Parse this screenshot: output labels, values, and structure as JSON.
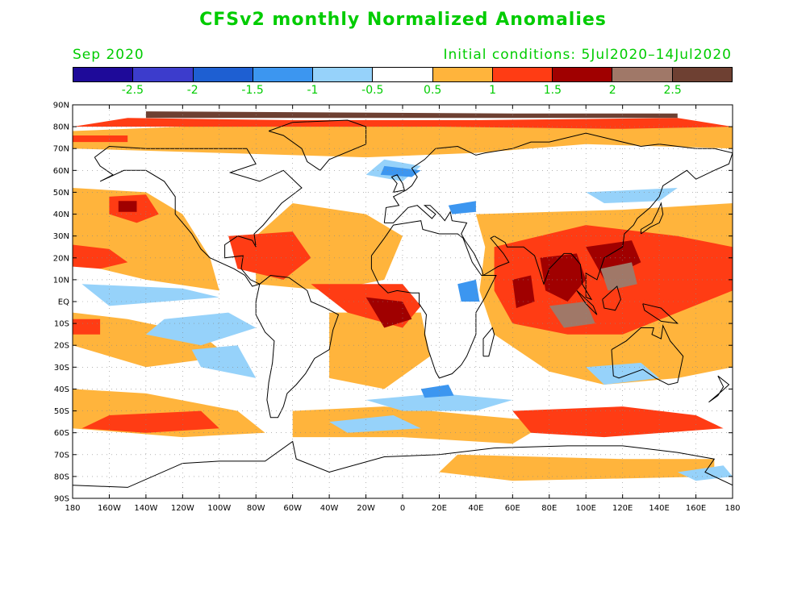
{
  "title": "CFSv2 monthly Normalized Anomalies",
  "valid_month": "Sep 2020",
  "initial_conditions": "Initial conditions: 5Jul2020–14Jul2020",
  "colorbar": {
    "colors": [
      "#1e0a99",
      "#3c3ccc",
      "#1e5fd2",
      "#3c96f0",
      "#96d2fa",
      "#ffffff",
      "#ffb43c",
      "#ff3c14",
      "#a00000",
      "#a07868",
      "#6e4032"
    ],
    "labels": [
      "-2.5",
      "-2",
      "-1.5",
      "-1",
      "-0.5",
      "0.5",
      "1",
      "1.5",
      "2",
      "2.5"
    ]
  },
  "axes": {
    "lat_labels": [
      "90N",
      "80N",
      "70N",
      "60N",
      "50N",
      "40N",
      "30N",
      "20N",
      "10N",
      "EQ",
      "10S",
      "20S",
      "30S",
      "40S",
      "50S",
      "60S",
      "70S",
      "80S",
      "90S"
    ],
    "lon_labels": [
      "180",
      "160W",
      "140W",
      "120W",
      "100W",
      "80W",
      "60W",
      "40W",
      "20W",
      "0",
      "20E",
      "40E",
      "60E",
      "80E",
      "100E",
      "120E",
      "140E",
      "160E",
      "180"
    ]
  },
  "map_data": {
    "projection": "equirectangular",
    "lon_range": [
      -180,
      180
    ],
    "lat_range": [
      -90,
      90
    ],
    "grid": true
  }
}
